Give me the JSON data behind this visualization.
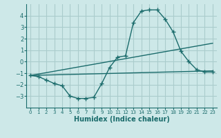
{
  "xlabel": "Humidex (Indice chaleur)",
  "background_color": "#cde8e8",
  "grid_color": "#aacccc",
  "line_color": "#1a6b6b",
  "xlim": [
    -0.5,
    23.5
  ],
  "ylim": [
    -4,
    5
  ],
  "yticks": [
    -3,
    -2,
    -1,
    0,
    1,
    2,
    3,
    4
  ],
  "xticks": [
    0,
    1,
    2,
    3,
    4,
    5,
    6,
    7,
    8,
    9,
    10,
    11,
    12,
    13,
    14,
    15,
    16,
    17,
    18,
    19,
    20,
    21,
    22,
    23
  ],
  "line1_x": [
    0,
    1,
    2,
    3,
    4,
    5,
    6,
    7,
    8,
    9,
    10,
    11,
    12,
    13,
    14,
    15,
    16,
    17,
    18,
    19,
    20,
    21,
    22,
    23
  ],
  "line1_y": [
    -1.2,
    -1.3,
    -1.6,
    -1.9,
    -2.1,
    -3.0,
    -3.2,
    -3.2,
    -3.1,
    -1.9,
    -0.5,
    0.4,
    0.5,
    3.4,
    4.4,
    4.5,
    4.5,
    3.7,
    2.6,
    0.9,
    0.0,
    -0.7,
    -0.9,
    -0.9
  ],
  "line2_x": [
    0,
    23
  ],
  "line2_y": [
    -1.2,
    1.6
  ],
  "line3_x": [
    0,
    23
  ],
  "line3_y": [
    -1.2,
    -0.8
  ]
}
